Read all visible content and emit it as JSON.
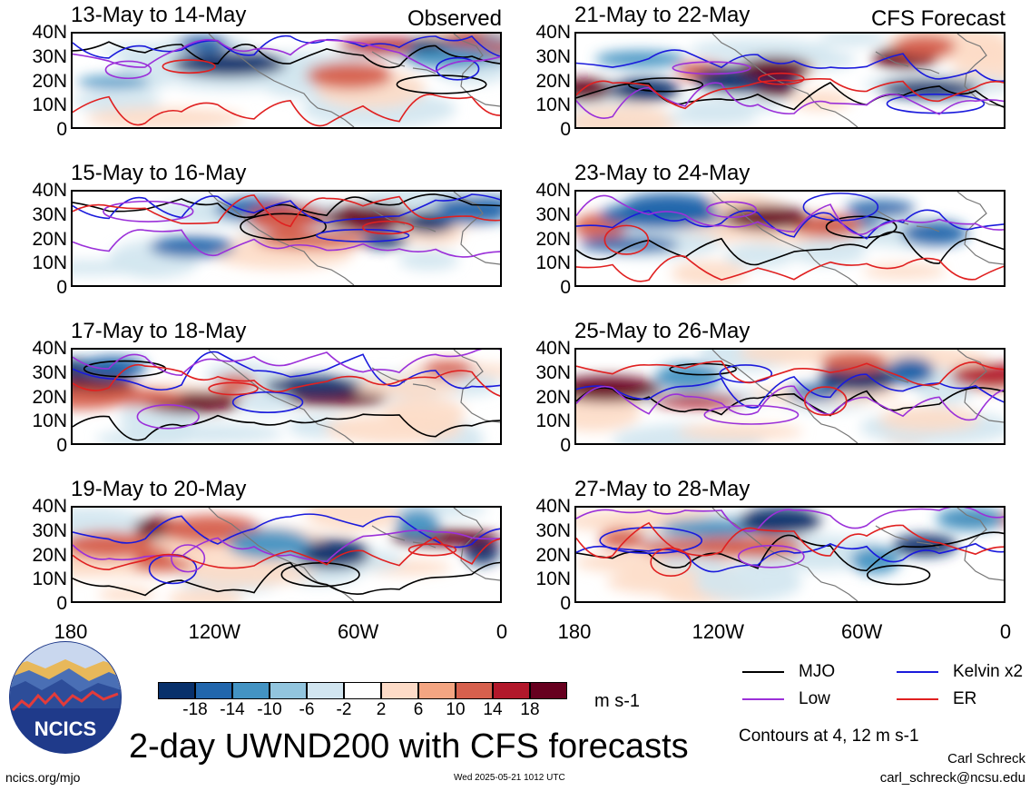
{
  "panels": [
    {
      "title": "13-May to 14-May",
      "tag": "Observed"
    },
    {
      "title": "15-May to 16-May",
      "tag": ""
    },
    {
      "title": "17-May to 18-May",
      "tag": ""
    },
    {
      "title": "19-May to 20-May",
      "tag": ""
    },
    {
      "title": "21-May to 22-May",
      "tag": "CFS Forecast"
    },
    {
      "title": "23-May to 24-May",
      "tag": ""
    },
    {
      "title": "25-May to 26-May",
      "tag": ""
    },
    {
      "title": "27-May to 28-May",
      "tag": ""
    }
  ],
  "yticks": [
    "40N",
    "30N",
    "20N",
    "10N",
    "0"
  ],
  "xticks": [
    "180",
    "120W",
    "60W",
    "0"
  ],
  "colorbar": {
    "colors": [
      "#08306b",
      "#2166ac",
      "#4393c3",
      "#92c5de",
      "#d1e5f0",
      "#ffffff",
      "#fddbc7",
      "#f4a582",
      "#d6604d",
      "#b2182b",
      "#67001f"
    ],
    "labels": [
      "-18",
      "-14",
      "-10",
      "-6",
      "-2",
      "2",
      "6",
      "10",
      "14",
      "18"
    ],
    "unit": "m s-1"
  },
  "legend": [
    {
      "label": "MJO",
      "color": "#000000"
    },
    {
      "label": "Kelvin x2",
      "color": "#1a1adc"
    },
    {
      "label": "Low",
      "color": "#9b30d9"
    },
    {
      "label": "ER",
      "color": "#e02020"
    }
  ],
  "contour_note": "Contours at 4, 12 m s-1",
  "main_title": "2-day UWND200 with CFS forecasts",
  "logo_text": "NCICS",
  "url": "ncics.org/mjo",
  "timestamp": "Wed 2025-05-21 1012 UTC",
  "author": "Carl Schreck",
  "email": "carl_schreck@ncsu.edu",
  "chart_data": {
    "type": "heatmap",
    "title": "2-day UWND200 with CFS forecasts",
    "variable": "200-hPa zonal wind anomaly",
    "unit": "m s-1",
    "x_range": [
      "180",
      "0"
    ],
    "x_ticks": [
      "180",
      "120W",
      "60W",
      "0"
    ],
    "y_range": [
      "0",
      "40N"
    ],
    "y_ticks": [
      "0",
      "10N",
      "20N",
      "30N",
      "40N"
    ],
    "color_levels": [
      -18,
      -14,
      -10,
      -6,
      -2,
      2,
      6,
      10,
      14,
      18
    ],
    "contour_levels": [
      4,
      12
    ],
    "contour_series": [
      "MJO",
      "Kelvin x2",
      "Low",
      "ER"
    ],
    "periods": [
      {
        "dates": "13-May to 14-May",
        "source": "Observed"
      },
      {
        "dates": "15-May to 16-May",
        "source": "Observed"
      },
      {
        "dates": "17-May to 18-May",
        "source": "Observed"
      },
      {
        "dates": "19-May to 20-May",
        "source": "Observed"
      },
      {
        "dates": "21-May to 22-May",
        "source": "CFS Forecast"
      },
      {
        "dates": "23-May to 24-May",
        "source": "CFS Forecast"
      },
      {
        "dates": "25-May to 26-May",
        "source": "CFS Forecast"
      },
      {
        "dates": "27-May to 28-May",
        "source": "CFS Forecast"
      }
    ]
  }
}
